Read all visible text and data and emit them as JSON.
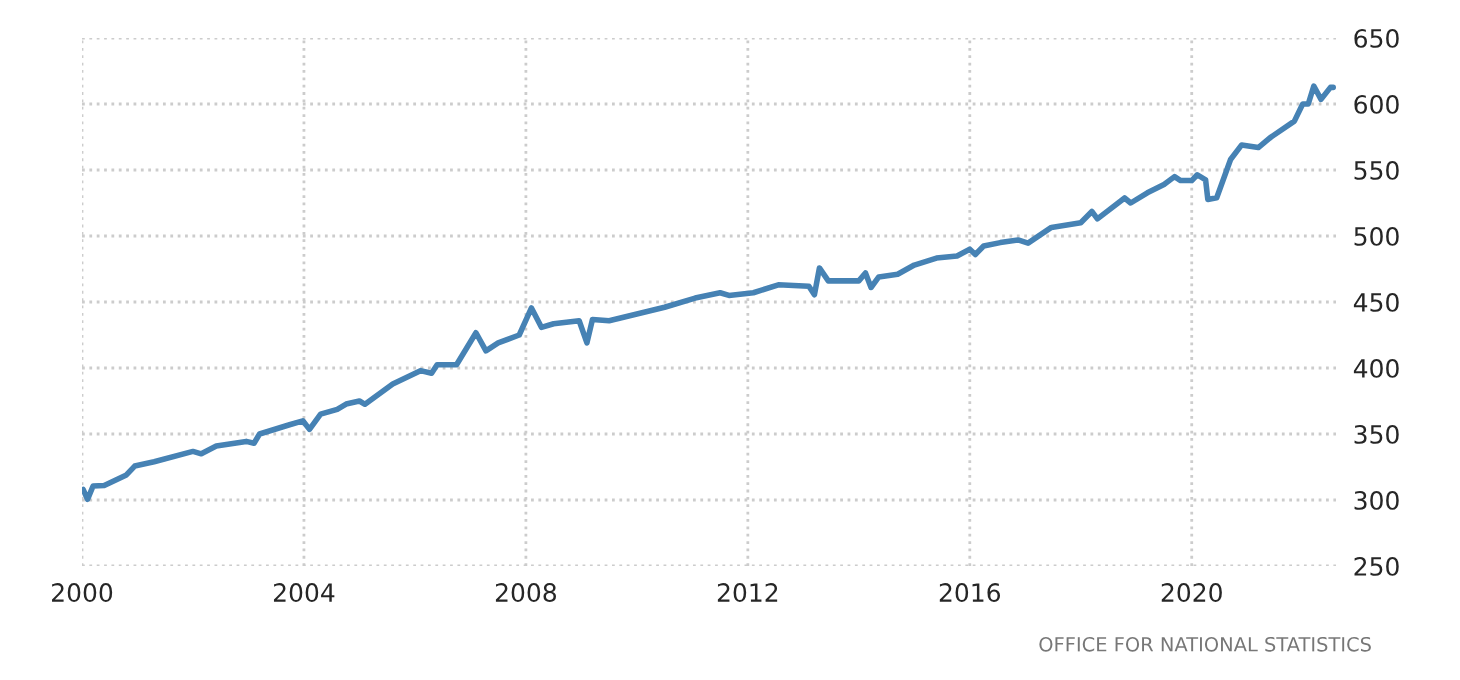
{
  "chart_data": {
    "type": "line",
    "x": [
      2000.02,
      2000.1,
      2000.2,
      2000.4,
      2000.8,
      2000.95,
      2001.3,
      2002.0,
      2002.15,
      2002.42,
      2002.96,
      2003.1,
      2003.2,
      2003.74,
      2003.98,
      2004.1,
      2004.3,
      2004.6,
      2004.76,
      2005.0,
      2005.1,
      2005.6,
      2006.1,
      2006.3,
      2006.4,
      2006.75,
      2007.1,
      2007.28,
      2007.5,
      2007.88,
      2008.1,
      2008.28,
      2008.5,
      2008.96,
      2009.1,
      2009.2,
      2009.5,
      2010.5,
      2011.05,
      2011.5,
      2011.66,
      2012.1,
      2012.55,
      2013.1,
      2013.2,
      2013.29,
      2013.45,
      2014.0,
      2014.12,
      2014.22,
      2014.36,
      2014.7,
      2015.0,
      2015.4,
      2015.77,
      2016.0,
      2016.1,
      2016.25,
      2016.55,
      2016.87,
      2017.05,
      2017.47,
      2018.0,
      2018.2,
      2018.3,
      2018.79,
      2018.9,
      2019.2,
      2019.5,
      2019.69,
      2019.8,
      2020.0,
      2020.1,
      2020.25,
      2020.29,
      2020.45,
      2020.7,
      2020.9,
      2021.2,
      2021.43,
      2021.85,
      2022.0,
      2022.1,
      2022.2,
      2022.33,
      2022.5,
      2022.55
    ],
    "series": [
      {
        "color": "#4682b4",
        "values": [
          308,
          300.5,
          310.6,
          311,
          319,
          325.7,
          329,
          336.8,
          335,
          340.9,
          344.4,
          343,
          350,
          357,
          360,
          353.5,
          365,
          368.7,
          372.7,
          375,
          372.5,
          387.8,
          398,
          396,
          402.5,
          402.5,
          426.7,
          413,
          419,
          425,
          445.5,
          430.8,
          433.5,
          435.8,
          419,
          436.8,
          435.8,
          446,
          453,
          457,
          455,
          457,
          463,
          462,
          455.5,
          475.8,
          466,
          466,
          472,
          461,
          469,
          471,
          478,
          483.3,
          484.8,
          490,
          486,
          492.4,
          495,
          497,
          494.6,
          506.5,
          510,
          518.6,
          513,
          528.8,
          525,
          532.7,
          539,
          545,
          542,
          542,
          546.4,
          542.5,
          527.7,
          529,
          558,
          569,
          567,
          575,
          587,
          600,
          600,
          613.6,
          603.5,
          612.6,
          612.6
        ]
      }
    ],
    "xlim": [
      2000,
      2022.6
    ],
    "xticks": [
      2000,
      2004,
      2008,
      2012,
      2016,
      2020
    ],
    "ylim": [
      250,
      650
    ],
    "yticks": [
      250,
      300,
      350,
      400,
      450,
      500,
      550,
      600,
      650
    ],
    "grid": true,
    "legend": false,
    "annotations": [
      "OFFICE FOR NATIONAL STATISTICS"
    ]
  }
}
